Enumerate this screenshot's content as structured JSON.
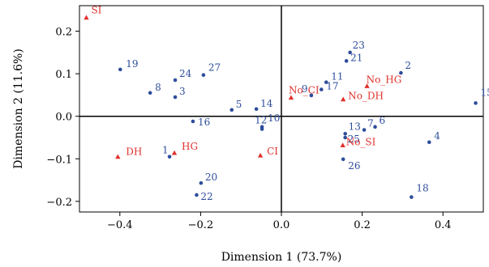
{
  "chart_data": {
    "type": "scatter",
    "title": "",
    "xlabel": "Dimension 1 (73.7%)",
    "ylabel": "Dimension 2 (11.6%)",
    "xlim": [
      -0.5,
      0.5
    ],
    "ylim": [
      -0.225,
      0.26
    ],
    "xticks": [
      -0.4,
      -0.2,
      0.0,
      0.2,
      0.4
    ],
    "xtick_labels": [
      "−0.4",
      "−0.2",
      "0.0",
      "0.2",
      "0.4"
    ],
    "yticks": [
      0.2,
      0.1,
      0.0,
      -0.1,
      -0.2
    ],
    "ytick_labels": [
      "0.2",
      "0.1",
      "0.0",
      "−0.1",
      "−0.2"
    ],
    "grid": false,
    "reference_lines": {
      "x": 0,
      "y": 0
    },
    "colors": {
      "blue": "#2E4D9B",
      "red": "#E0312C"
    },
    "series": [
      {
        "marker": "circle",
        "color": "#2E4D9B",
        "points": [
          {
            "label": "1",
            "x": -0.277,
            "y": -0.095
          },
          {
            "label": "2",
            "x": 0.296,
            "y": 0.102
          },
          {
            "label": "3",
            "x": -0.263,
            "y": 0.045
          },
          {
            "label": "4",
            "x": 0.366,
            "y": -0.061
          },
          {
            "label": "5",
            "x": -0.123,
            "y": 0.015
          },
          {
            "label": "6",
            "x": 0.232,
            "y": -0.025
          },
          {
            "label": "7",
            "x": 0.205,
            "y": -0.032
          },
          {
            "label": "8",
            "x": -0.325,
            "y": 0.055
          },
          {
            "label": "9",
            "x": 0.074,
            "y": 0.049
          },
          {
            "label": "10",
            "x": -0.048,
            "y": -0.025
          },
          {
            "label": "11",
            "x": 0.111,
            "y": 0.08
          },
          {
            "label": "12",
            "x": -0.048,
            "y": -0.03
          },
          {
            "label": "13",
            "x": 0.158,
            "y": -0.041
          },
          {
            "label": "14",
            "x": -0.062,
            "y": 0.017
          },
          {
            "label": "15",
            "x": 0.481,
            "y": 0.031
          },
          {
            "label": "16",
            "x": -0.219,
            "y": -0.012
          },
          {
            "label": "17",
            "x": 0.099,
            "y": 0.063
          },
          {
            "label": "18",
            "x": 0.322,
            "y": -0.19
          },
          {
            "label": "19",
            "x": -0.399,
            "y": 0.11
          },
          {
            "label": "20",
            "x": -0.199,
            "y": -0.157
          },
          {
            "label": "21",
            "x": 0.161,
            "y": 0.13
          },
          {
            "label": "22",
            "x": -0.21,
            "y": -0.185
          },
          {
            "label": "23",
            "x": 0.17,
            "y": 0.15
          },
          {
            "label": "24",
            "x": -0.263,
            "y": 0.085
          },
          {
            "label": "25",
            "x": 0.158,
            "y": -0.05
          },
          {
            "label": "26",
            "x": 0.153,
            "y": -0.101
          },
          {
            "label": "27",
            "x": -0.193,
            "y": 0.097
          }
        ]
      },
      {
        "marker": "triangle",
        "color": "#E0312C",
        "points": [
          {
            "label": "SI",
            "x": -0.483,
            "y": 0.232
          },
          {
            "label": "DH",
            "x": -0.405,
            "y": -0.095
          },
          {
            "label": "HG",
            "x": -0.265,
            "y": -0.086
          },
          {
            "label": "CI",
            "x": -0.052,
            "y": -0.092
          },
          {
            "label": "No_CI",
            "x": 0.024,
            "y": 0.044
          },
          {
            "label": "No_HG",
            "x": 0.212,
            "y": 0.071
          },
          {
            "label": "No_DH",
            "x": 0.153,
            "y": 0.04
          },
          {
            "label": "No_SI",
            "x": 0.152,
            "y": -0.068
          }
        ]
      }
    ]
  }
}
